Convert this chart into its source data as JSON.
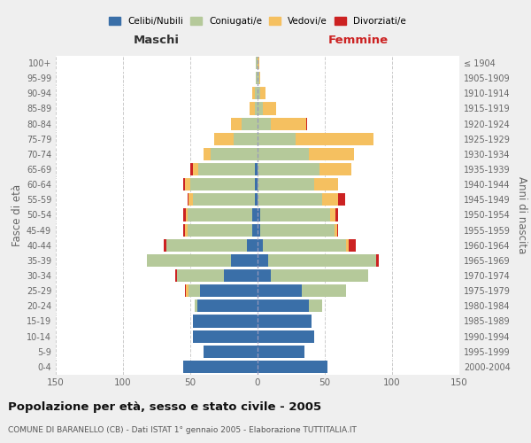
{
  "age_groups": [
    "0-4",
    "5-9",
    "10-14",
    "15-19",
    "20-24",
    "25-29",
    "30-34",
    "35-39",
    "40-44",
    "45-49",
    "50-54",
    "55-59",
    "60-64",
    "65-69",
    "70-74",
    "75-79",
    "80-84",
    "85-89",
    "90-94",
    "95-99",
    "100+"
  ],
  "birth_years": [
    "2000-2004",
    "1995-1999",
    "1990-1994",
    "1985-1989",
    "1980-1984",
    "1975-1979",
    "1970-1974",
    "1965-1969",
    "1960-1964",
    "1955-1959",
    "1950-1954",
    "1945-1949",
    "1940-1944",
    "1935-1939",
    "1930-1934",
    "1925-1929",
    "1920-1924",
    "1915-1919",
    "1910-1914",
    "1905-1909",
    "≤ 1904"
  ],
  "male": {
    "celibi": [
      55,
      40,
      48,
      48,
      45,
      43,
      25,
      20,
      8,
      4,
      4,
      2,
      2,
      2,
      0,
      0,
      0,
      0,
      0,
      0,
      0
    ],
    "coniugati": [
      0,
      0,
      0,
      0,
      2,
      8,
      35,
      62,
      60,
      48,
      48,
      46,
      48,
      42,
      35,
      18,
      12,
      2,
      2,
      1,
      1
    ],
    "vedovi": [
      0,
      0,
      0,
      0,
      0,
      2,
      0,
      0,
      0,
      2,
      1,
      3,
      4,
      4,
      5,
      14,
      8,
      4,
      2,
      0,
      0
    ],
    "divorziati": [
      0,
      0,
      0,
      0,
      0,
      1,
      1,
      0,
      2,
      1,
      2,
      1,
      1,
      2,
      0,
      0,
      0,
      0,
      0,
      0,
      0
    ]
  },
  "female": {
    "nubili": [
      52,
      35,
      42,
      40,
      38,
      33,
      10,
      8,
      4,
      2,
      2,
      0,
      0,
      0,
      0,
      0,
      0,
      0,
      0,
      0,
      0
    ],
    "coniugate": [
      0,
      0,
      0,
      0,
      10,
      33,
      72,
      80,
      62,
      55,
      52,
      48,
      42,
      46,
      38,
      28,
      10,
      4,
      2,
      1,
      0
    ],
    "vedove": [
      0,
      0,
      0,
      0,
      0,
      0,
      0,
      0,
      2,
      2,
      4,
      12,
      18,
      24,
      34,
      58,
      26,
      10,
      4,
      1,
      1
    ],
    "divorziate": [
      0,
      0,
      0,
      0,
      0,
      0,
      0,
      2,
      5,
      1,
      2,
      5,
      0,
      0,
      0,
      0,
      1,
      0,
      0,
      0,
      0
    ]
  },
  "color_celibi": "#3a6fa8",
  "color_coniugati": "#b5c99a",
  "color_vedovi": "#f5c060",
  "color_divorziati": "#cc2222",
  "xlim": 150,
  "title": "Popolazione per età, sesso e stato civile - 2005",
  "subtitle": "COMUNE DI BARANELLO (CB) - Dati ISTAT 1° gennaio 2005 - Elaborazione TUTTITALIA.IT",
  "ylabel_left": "Fasce di età",
  "ylabel_right": "Anni di nascita",
  "xlabel_maschi": "Maschi",
  "xlabel_femmine": "Femmine",
  "legend_labels": [
    "Celibi/Nubili",
    "Coniugati/e",
    "Vedovi/e",
    "Divorziati/e"
  ],
  "bg_color": "#efefef",
  "plot_bg_color": "#ffffff",
  "grid_color": "#cccccc",
  "femmine_color": "#cc2222",
  "maschi_color": "#333333"
}
